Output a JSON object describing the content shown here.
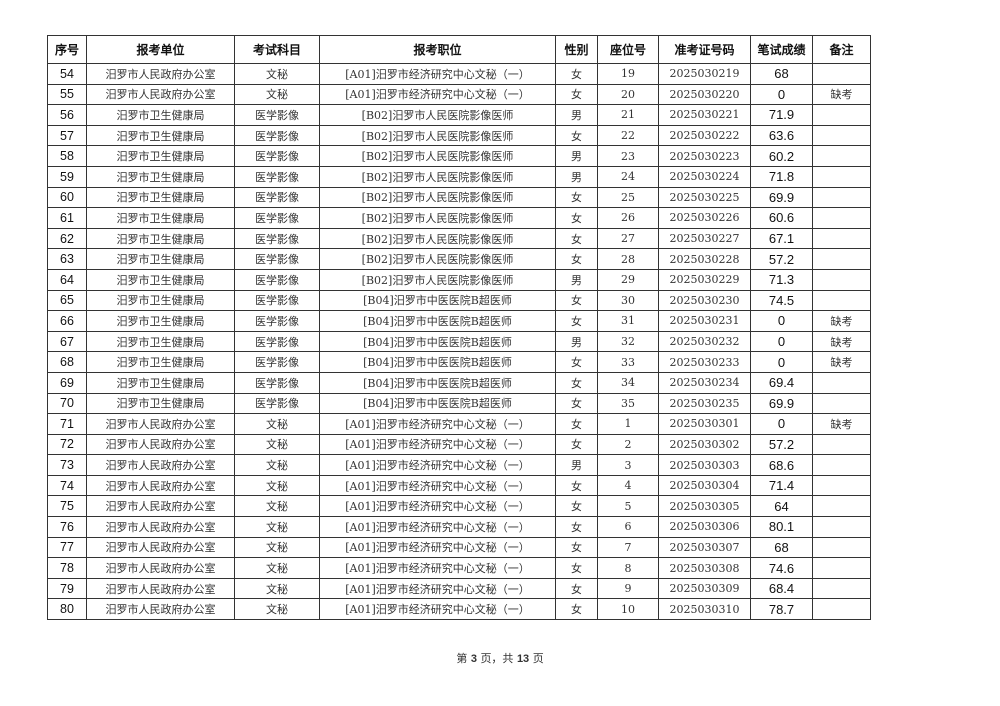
{
  "table": {
    "headers": [
      "序号",
      "报考单位",
      "考试科目",
      "报考职位",
      "性别",
      "座位号",
      "准考证号码",
      "笔试成绩",
      "备注"
    ],
    "rows": [
      [
        "54",
        "汨罗市人民政府办公室",
        "文秘",
        "[A01]汨罗市经济研究中心文秘（一）",
        "女",
        "19",
        "2025030219",
        "68",
        ""
      ],
      [
        "55",
        "汨罗市人民政府办公室",
        "文秘",
        "[A01]汨罗市经济研究中心文秘（一）",
        "女",
        "20",
        "2025030220",
        "0",
        "缺考"
      ],
      [
        "56",
        "汨罗市卫生健康局",
        "医学影像",
        "[B02]汨罗市人民医院影像医师",
        "男",
        "21",
        "2025030221",
        "71.9",
        ""
      ],
      [
        "57",
        "汨罗市卫生健康局",
        "医学影像",
        "[B02]汨罗市人民医院影像医师",
        "女",
        "22",
        "2025030222",
        "63.6",
        ""
      ],
      [
        "58",
        "汨罗市卫生健康局",
        "医学影像",
        "[B02]汨罗市人民医院影像医师",
        "男",
        "23",
        "2025030223",
        "60.2",
        ""
      ],
      [
        "59",
        "汨罗市卫生健康局",
        "医学影像",
        "[B02]汨罗市人民医院影像医师",
        "男",
        "24",
        "2025030224",
        "71.8",
        ""
      ],
      [
        "60",
        "汨罗市卫生健康局",
        "医学影像",
        "[B02]汨罗市人民医院影像医师",
        "女",
        "25",
        "2025030225",
        "69.9",
        ""
      ],
      [
        "61",
        "汨罗市卫生健康局",
        "医学影像",
        "[B02]汨罗市人民医院影像医师",
        "女",
        "26",
        "2025030226",
        "60.6",
        ""
      ],
      [
        "62",
        "汨罗市卫生健康局",
        "医学影像",
        "[B02]汨罗市人民医院影像医师",
        "女",
        "27",
        "2025030227",
        "67.1",
        ""
      ],
      [
        "63",
        "汨罗市卫生健康局",
        "医学影像",
        "[B02]汨罗市人民医院影像医师",
        "女",
        "28",
        "2025030228",
        "57.2",
        ""
      ],
      [
        "64",
        "汨罗市卫生健康局",
        "医学影像",
        "[B02]汨罗市人民医院影像医师",
        "男",
        "29",
        "2025030229",
        "71.3",
        ""
      ],
      [
        "65",
        "汨罗市卫生健康局",
        "医学影像",
        "[B04]汨罗市中医医院B超医师",
        "女",
        "30",
        "2025030230",
        "74.5",
        ""
      ],
      [
        "66",
        "汨罗市卫生健康局",
        "医学影像",
        "[B04]汨罗市中医医院B超医师",
        "女",
        "31",
        "2025030231",
        "0",
        "缺考"
      ],
      [
        "67",
        "汨罗市卫生健康局",
        "医学影像",
        "[B04]汨罗市中医医院B超医师",
        "男",
        "32",
        "2025030232",
        "0",
        "缺考"
      ],
      [
        "68",
        "汨罗市卫生健康局",
        "医学影像",
        "[B04]汨罗市中医医院B超医师",
        "女",
        "33",
        "2025030233",
        "0",
        "缺考"
      ],
      [
        "69",
        "汨罗市卫生健康局",
        "医学影像",
        "[B04]汨罗市中医医院B超医师",
        "女",
        "34",
        "2025030234",
        "69.4",
        ""
      ],
      [
        "70",
        "汨罗市卫生健康局",
        "医学影像",
        "[B04]汨罗市中医医院B超医师",
        "女",
        "35",
        "2025030235",
        "69.9",
        ""
      ],
      [
        "71",
        "汨罗市人民政府办公室",
        "文秘",
        "[A01]汨罗市经济研究中心文秘（一）",
        "女",
        "1",
        "2025030301",
        "0",
        "缺考"
      ],
      [
        "72",
        "汨罗市人民政府办公室",
        "文秘",
        "[A01]汨罗市经济研究中心文秘（一）",
        "女",
        "2",
        "2025030302",
        "57.2",
        ""
      ],
      [
        "73",
        "汨罗市人民政府办公室",
        "文秘",
        "[A01]汨罗市经济研究中心文秘（一）",
        "男",
        "3",
        "2025030303",
        "68.6",
        ""
      ],
      [
        "74",
        "汨罗市人民政府办公室",
        "文秘",
        "[A01]汨罗市经济研究中心文秘（一）",
        "女",
        "4",
        "2025030304",
        "71.4",
        ""
      ],
      [
        "75",
        "汨罗市人民政府办公室",
        "文秘",
        "[A01]汨罗市经济研究中心文秘（一）",
        "女",
        "5",
        "2025030305",
        "64",
        ""
      ],
      [
        "76",
        "汨罗市人民政府办公室",
        "文秘",
        "[A01]汨罗市经济研究中心文秘（一）",
        "女",
        "6",
        "2025030306",
        "80.1",
        ""
      ],
      [
        "77",
        "汨罗市人民政府办公室",
        "文秘",
        "[A01]汨罗市经济研究中心文秘（一）",
        "女",
        "7",
        "2025030307",
        "68",
        ""
      ],
      [
        "78",
        "汨罗市人民政府办公室",
        "文秘",
        "[A01]汨罗市经济研究中心文秘（一）",
        "女",
        "8",
        "2025030308",
        "74.6",
        ""
      ],
      [
        "79",
        "汨罗市人民政府办公室",
        "文秘",
        "[A01]汨罗市经济研究中心文秘（一）",
        "女",
        "9",
        "2025030309",
        "68.4",
        ""
      ],
      [
        "80",
        "汨罗市人民政府办公室",
        "文秘",
        "[A01]汨罗市经济研究中心文秘（一）",
        "女",
        "10",
        "2025030310",
        "78.7",
        ""
      ]
    ]
  },
  "footer": {
    "prefix": "第",
    "page": "3",
    "mid": "页，共",
    "total": "13",
    "suffix": "页"
  }
}
